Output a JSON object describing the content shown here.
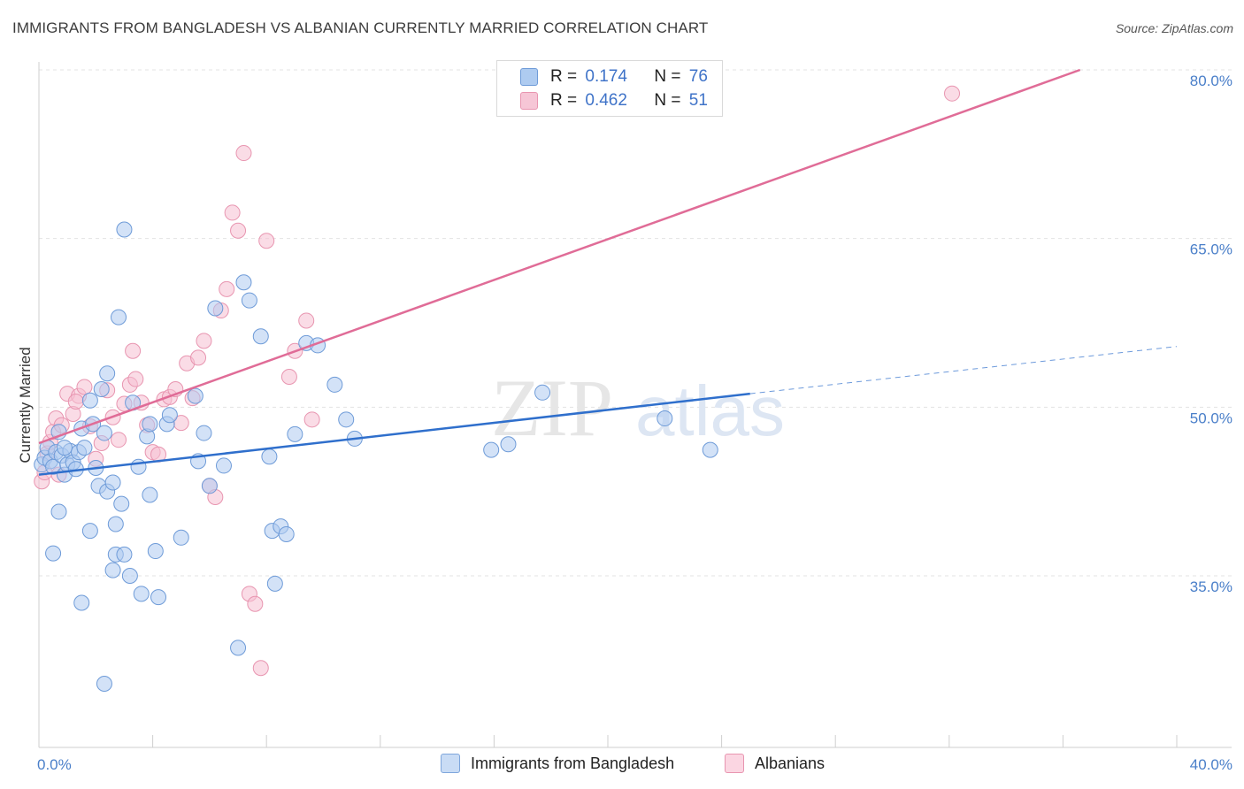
{
  "title": "IMMIGRANTS FROM BANGLADESH VS ALBANIAN CURRENTLY MARRIED CORRELATION CHART",
  "source": "Source: ZipAtlas.com",
  "watermark": {
    "zip": "ZIP",
    "atlas": "atlas"
  },
  "legend": {
    "r_label": "R =",
    "n_label": "N =",
    "rows": [
      {
        "r": "0.174",
        "n": "76"
      },
      {
        "r": "0.462",
        "n": "51"
      }
    ]
  },
  "colors": {
    "blue_fill": "#aecbf0",
    "blue_stroke": "#6e9bd8",
    "blue_line": "#2f6fcc",
    "pink_fill": "#f6bfd1",
    "pink_stroke": "#e895b0",
    "pink_line": "#e06c97",
    "grid": "#e3e3e3",
    "axis_text": "#4a7fc9"
  },
  "chart_data": {
    "type": "scatter",
    "title": "IMMIGRANTS FROM BANGLADESH VS ALBANIAN CURRENTLY MARRIED CORRELATION CHART",
    "xlabel": "",
    "ylabel": "Currently Married",
    "xlim": [
      0,
      40
    ],
    "ylim": [
      20,
      83
    ],
    "x_tick_labels": [
      "0.0%",
      "40.0%"
    ],
    "y_ticks": [
      35,
      50,
      65,
      80
    ],
    "y_tick_labels": [
      "35.0%",
      "50.0%",
      "65.0%",
      "80.0%"
    ],
    "legend_position": "top-center",
    "series": [
      {
        "name": "Immigrants from Bangladesh",
        "r": 0.174,
        "n": 76,
        "trend": {
          "x": [
            0,
            25
          ],
          "y": [
            44.0,
            51.2
          ],
          "dashed_to": {
            "x": 40,
            "y": 55.4
          }
        },
        "points": [
          [
            0.1,
            44.9
          ],
          [
            0.2,
            45.5
          ],
          [
            0.3,
            46.4
          ],
          [
            0.4,
            45.2
          ],
          [
            0.5,
            44.7
          ],
          [
            0.6,
            46.0
          ],
          [
            0.7,
            47.8
          ],
          [
            0.8,
            45.7
          ],
          [
            0.9,
            44.0
          ],
          [
            1.0,
            44.9
          ],
          [
            1.1,
            46.1
          ],
          [
            1.2,
            45.1
          ],
          [
            1.3,
            44.5
          ],
          [
            1.4,
            46.0
          ],
          [
            0.7,
            40.7
          ],
          [
            0.5,
            37.0
          ],
          [
            1.5,
            48.1
          ],
          [
            1.6,
            46.4
          ],
          [
            1.8,
            50.6
          ],
          [
            1.9,
            48.5
          ],
          [
            2.0,
            44.6
          ],
          [
            2.1,
            43.0
          ],
          [
            2.2,
            51.6
          ],
          [
            2.3,
            47.7
          ],
          [
            2.4,
            42.5
          ],
          [
            2.6,
            43.3
          ],
          [
            2.7,
            39.6
          ],
          [
            1.8,
            39.0
          ],
          [
            2.9,
            41.4
          ],
          [
            2.7,
            36.9
          ],
          [
            3.0,
            36.9
          ],
          [
            3.2,
            35.0
          ],
          [
            3.5,
            44.7
          ],
          [
            3.6,
            33.4
          ],
          [
            3.8,
            47.4
          ],
          [
            3.9,
            42.2
          ],
          [
            4.1,
            37.2
          ],
          [
            4.2,
            33.1
          ],
          [
            4.5,
            48.5
          ],
          [
            4.6,
            49.3
          ],
          [
            5.0,
            38.4
          ],
          [
            5.6,
            45.2
          ],
          [
            5.8,
            47.7
          ],
          [
            6.0,
            43.0
          ],
          [
            6.2,
            58.8
          ],
          [
            6.5,
            44.8
          ],
          [
            7.2,
            61.1
          ],
          [
            7.4,
            59.5
          ],
          [
            7.8,
            56.3
          ],
          [
            8.2,
            39.0
          ],
          [
            8.3,
            34.3
          ],
          [
            8.5,
            39.4
          ],
          [
            8.7,
            38.7
          ],
          [
            7.0,
            28.6
          ],
          [
            8.1,
            45.6
          ],
          [
            9.0,
            47.6
          ],
          [
            9.4,
            55.7
          ],
          [
            9.8,
            55.5
          ],
          [
            10.4,
            52.0
          ],
          [
            11.1,
            47.2
          ],
          [
            10.8,
            48.9
          ],
          [
            15.9,
            46.2
          ],
          [
            16.5,
            46.7
          ],
          [
            17.7,
            51.3
          ],
          [
            22.0,
            49.0
          ],
          [
            23.6,
            46.2
          ],
          [
            3.0,
            65.8
          ],
          [
            2.8,
            58.0
          ],
          [
            2.4,
            53.0
          ],
          [
            3.3,
            50.4
          ],
          [
            3.9,
            48.5
          ],
          [
            1.5,
            32.6
          ],
          [
            2.3,
            25.4
          ],
          [
            0.9,
            46.4
          ],
          [
            2.6,
            35.5
          ],
          [
            5.5,
            51.0
          ]
        ]
      },
      {
        "name": "Albanians",
        "r": 0.462,
        "n": 51,
        "trend": {
          "x": [
            0,
            36.6
          ],
          "y": [
            46.8,
            80.0
          ]
        },
        "points": [
          [
            0.1,
            43.4
          ],
          [
            0.2,
            44.2
          ],
          [
            0.3,
            45.9
          ],
          [
            0.4,
            46.9
          ],
          [
            0.5,
            47.8
          ],
          [
            0.6,
            49.0
          ],
          [
            0.8,
            48.4
          ],
          [
            1.0,
            51.2
          ],
          [
            1.2,
            49.4
          ],
          [
            1.4,
            51.0
          ],
          [
            1.6,
            51.8
          ],
          [
            1.8,
            48.3
          ],
          [
            2.0,
            45.4
          ],
          [
            2.2,
            46.8
          ],
          [
            2.4,
            51.5
          ],
          [
            2.6,
            49.1
          ],
          [
            2.8,
            47.1
          ],
          [
            3.0,
            50.3
          ],
          [
            3.2,
            52.0
          ],
          [
            3.4,
            52.5
          ],
          [
            3.6,
            50.4
          ],
          [
            3.8,
            48.4
          ],
          [
            4.0,
            46.0
          ],
          [
            4.2,
            45.8
          ],
          [
            4.4,
            50.7
          ],
          [
            4.6,
            50.9
          ],
          [
            4.8,
            51.6
          ],
          [
            5.0,
            48.6
          ],
          [
            5.2,
            53.9
          ],
          [
            5.4,
            50.8
          ],
          [
            5.6,
            54.4
          ],
          [
            5.8,
            55.9
          ],
          [
            6.0,
            43.0
          ],
          [
            6.2,
            42.0
          ],
          [
            6.4,
            58.6
          ],
          [
            6.6,
            60.5
          ],
          [
            6.8,
            67.3
          ],
          [
            7.0,
            65.7
          ],
          [
            7.2,
            72.6
          ],
          [
            7.4,
            33.4
          ],
          [
            7.6,
            32.5
          ],
          [
            7.8,
            26.8
          ],
          [
            8.0,
            64.8
          ],
          [
            8.8,
            52.7
          ],
          [
            9.0,
            55.0
          ],
          [
            9.4,
            57.7
          ],
          [
            9.6,
            48.9
          ],
          [
            3.3,
            55.0
          ],
          [
            1.3,
            50.5
          ],
          [
            0.7,
            44.0
          ],
          [
            32.1,
            77.9
          ]
        ]
      }
    ]
  },
  "bottom_legend": [
    "Immigrants from Bangladesh",
    "Albanians"
  ]
}
